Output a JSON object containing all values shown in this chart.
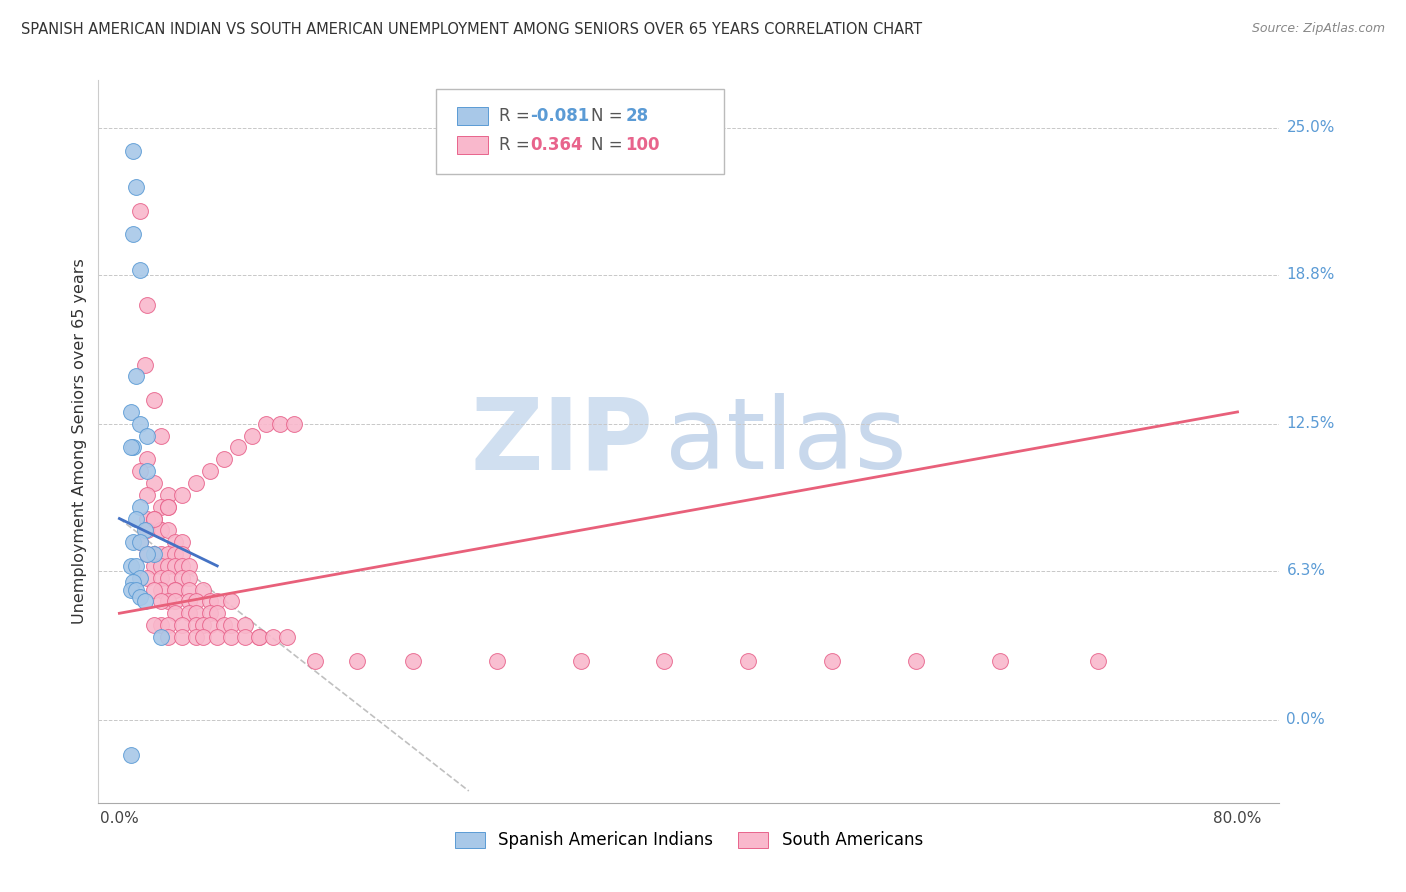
{
  "title": "SPANISH AMERICAN INDIAN VS SOUTH AMERICAN UNEMPLOYMENT AMONG SENIORS OVER 65 YEARS CORRELATION CHART",
  "source": "Source: ZipAtlas.com",
  "ylabel": "Unemployment Among Seniors over 65 years",
  "ytick_vals": [
    0.0,
    6.3,
    12.5,
    18.8,
    25.0
  ],
  "ytick_labels": [
    "0.0%",
    "6.3%",
    "12.5%",
    "18.8%",
    "25.0%"
  ],
  "xtick_vals": [
    0.0,
    80.0
  ],
  "xtick_labels": [
    "0.0%",
    "80.0%"
  ],
  "color_blue_fill": "#A8C8E8",
  "color_blue_edge": "#5B9BD5",
  "color_pink_fill": "#F9B8CC",
  "color_pink_edge": "#E8648C",
  "color_line_blue": "#4472C4",
  "color_line_pink": "#E8607A",
  "color_line_dashed": "#C0C0C0",
  "color_grid": "#C8C8C8",
  "color_ytick_label": "#5B9BD5",
  "background_color": "#FFFFFF",
  "xlim": [
    -1.5,
    83
  ],
  "ylim": [
    -3.5,
    27
  ],
  "blue_x": [
    1.0,
    1.2,
    1.0,
    1.5,
    1.2,
    0.8,
    1.5,
    2.0,
    1.0,
    0.8,
    2.0,
    1.5,
    1.2,
    1.8,
    1.0,
    1.5,
    2.5,
    2.0,
    0.8,
    1.2,
    1.5,
    1.0,
    0.8,
    1.2,
    1.5,
    1.8,
    0.8,
    3.0
  ],
  "blue_y": [
    24.0,
    22.5,
    20.5,
    19.0,
    14.5,
    13.0,
    12.5,
    12.0,
    11.5,
    11.5,
    10.5,
    9.0,
    8.5,
    8.0,
    7.5,
    7.5,
    7.0,
    7.0,
    6.5,
    6.5,
    6.0,
    5.8,
    5.5,
    5.5,
    5.2,
    5.0,
    -1.5,
    3.5
  ],
  "pink_x": [
    1.5,
    2.0,
    1.8,
    2.5,
    3.0,
    2.0,
    1.5,
    2.5,
    2.0,
    3.5,
    3.0,
    3.5,
    2.0,
    2.5,
    3.0,
    2.0,
    3.0,
    3.5,
    4.0,
    4.5,
    2.5,
    2.0,
    3.0,
    3.5,
    4.0,
    4.5,
    2.5,
    3.0,
    3.5,
    4.0,
    4.5,
    5.0,
    2.0,
    3.0,
    3.5,
    4.5,
    5.0,
    4.0,
    3.0,
    2.5,
    4.0,
    5.0,
    6.0,
    3.5,
    3.0,
    4.0,
    5.0,
    5.5,
    6.5,
    7.0,
    8.0,
    4.0,
    5.0,
    5.5,
    6.5,
    7.0,
    3.0,
    2.5,
    3.5,
    4.5,
    5.5,
    6.0,
    6.5,
    7.5,
    8.0,
    9.0,
    10.0,
    3.5,
    4.5,
    5.5,
    6.0,
    7.0,
    8.0,
    9.0,
    10.0,
    11.0,
    12.0,
    14.0,
    17.0,
    21.0,
    27.0,
    33.0,
    39.0,
    45.0,
    51.0,
    57.0,
    63.0,
    70.0,
    1.5,
    2.5,
    3.5,
    4.5,
    5.5,
    6.5,
    7.5,
    8.5,
    9.5,
    10.5,
    11.5,
    12.5
  ],
  "pink_y": [
    21.5,
    17.5,
    15.0,
    13.5,
    12.0,
    11.0,
    10.5,
    10.0,
    9.5,
    9.5,
    9.0,
    9.0,
    8.5,
    8.5,
    8.0,
    8.0,
    8.0,
    8.0,
    7.5,
    7.5,
    7.0,
    7.0,
    7.0,
    7.0,
    7.0,
    7.0,
    6.5,
    6.5,
    6.5,
    6.5,
    6.5,
    6.5,
    6.0,
    6.0,
    6.0,
    6.0,
    6.0,
    5.5,
    5.5,
    5.5,
    5.5,
    5.5,
    5.5,
    5.0,
    5.0,
    5.0,
    5.0,
    5.0,
    5.0,
    5.0,
    5.0,
    4.5,
    4.5,
    4.5,
    4.5,
    4.5,
    4.0,
    4.0,
    4.0,
    4.0,
    4.0,
    4.0,
    4.0,
    4.0,
    4.0,
    4.0,
    3.5,
    3.5,
    3.5,
    3.5,
    3.5,
    3.5,
    3.5,
    3.5,
    3.5,
    3.5,
    3.5,
    2.5,
    2.5,
    2.5,
    2.5,
    2.5,
    2.5,
    2.5,
    2.5,
    2.5,
    2.5,
    2.5,
    7.5,
    8.5,
    9.0,
    9.5,
    10.0,
    10.5,
    11.0,
    11.5,
    12.0,
    12.5,
    12.5,
    12.5
  ],
  "blue_line_x0": 0.0,
  "blue_line_x1": 7.0,
  "blue_line_y0": 8.5,
  "blue_line_y1": 6.5,
  "pink_line_x0": 0.0,
  "pink_line_x1": 80.0,
  "pink_line_y0": 4.5,
  "pink_line_y1": 13.0,
  "dash_line_x0": 0.0,
  "dash_line_x1": 25.0,
  "dash_line_y0": 8.5,
  "dash_line_y1": -3.0
}
